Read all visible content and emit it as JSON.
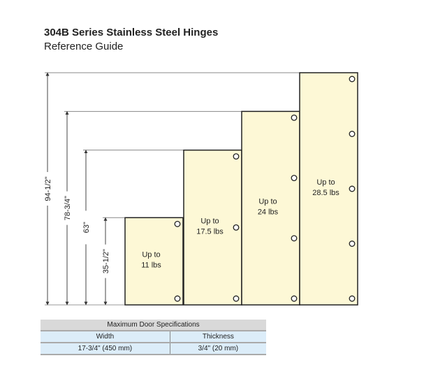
{
  "header": {
    "title": "304B Series Stainless Steel Hinges",
    "subtitle": "Reference Guide"
  },
  "diagram": {
    "dimensions": [
      {
        "label": "94-1/2\"",
        "value": 94.5
      },
      {
        "label": "78-3/4\"",
        "value": 78.75
      },
      {
        "label": "63\"",
        "value": 63
      },
      {
        "label": "35-1/2\"",
        "value": 35.5
      }
    ],
    "doors": [
      {
        "height": 35.5,
        "line1": "Up to",
        "line2": "11 lbs",
        "hinges": 2
      },
      {
        "height": 63,
        "line1": "Up to",
        "line2": "17.5 lbs",
        "hinges": 3
      },
      {
        "height": 78.75,
        "line1": "Up to",
        "line2": "24 lbs",
        "hinges": 4
      },
      {
        "height": 94.5,
        "line1": "Up to",
        "line2": "28.5 lbs",
        "hinges": 5
      }
    ],
    "colors": {
      "door_fill": "#fdf8d6",
      "line": "#222222",
      "dim_line": "#888888"
    }
  },
  "specs": {
    "title": "Maximum Door Specifications",
    "headers": [
      "Width",
      "Thickness"
    ],
    "values": [
      "17-3/4\" (450 mm)",
      "3/4\" (20 mm)"
    ]
  }
}
